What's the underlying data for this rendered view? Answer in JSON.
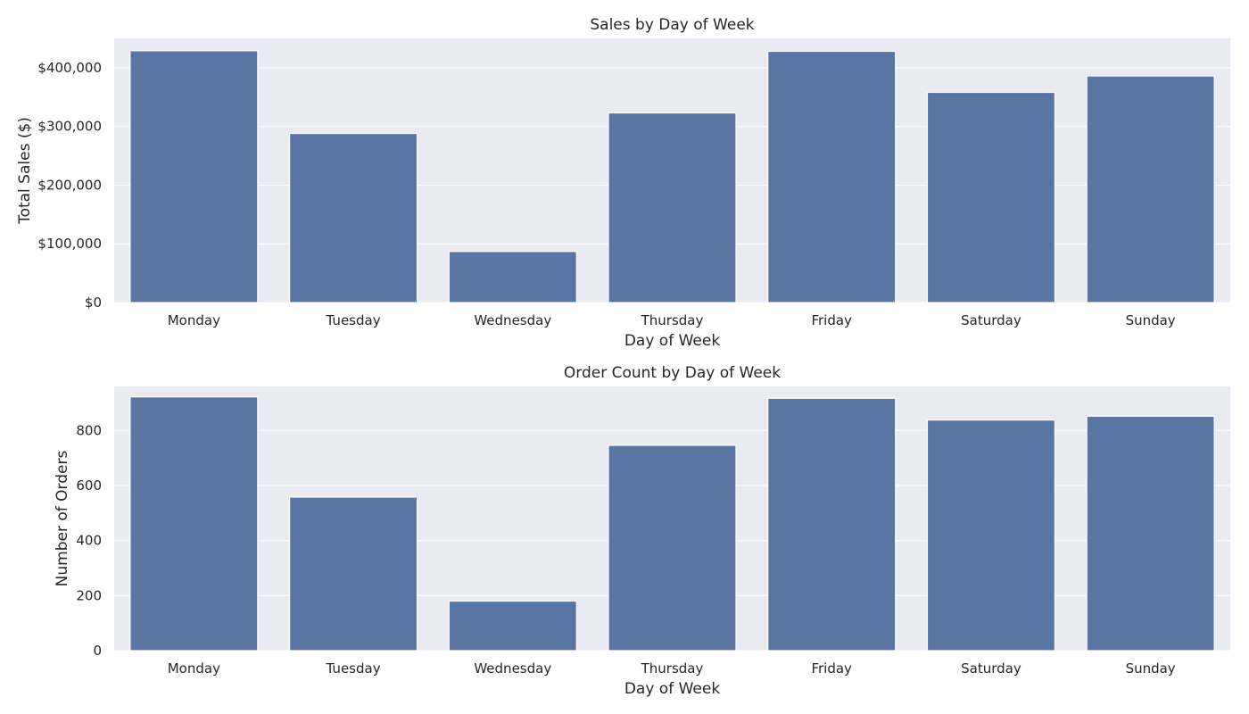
{
  "charts": [
    {
      "key": "sales",
      "title": "Sales by Day of Week",
      "xlabel": "Day of Week",
      "ylabel": "Total Sales ($)",
      "ylim": [
        0,
        450000
      ],
      "yticks": [
        0,
        100000,
        200000,
        300000,
        400000
      ],
      "ytick_labels": [
        "$0",
        "$100,000",
        "$200,000",
        "$300,000",
        "$400,000"
      ]
    },
    {
      "key": "orders",
      "title": "Order Count by Day of Week",
      "xlabel": "Day of Week",
      "ylabel": "Number of Orders",
      "ylim": [
        0,
        960
      ],
      "yticks": [
        0,
        200,
        400,
        600,
        800
      ],
      "ytick_labels": [
        "0",
        "200",
        "400",
        "600",
        "800"
      ]
    }
  ],
  "chart_data": [
    {
      "type": "bar",
      "title": "Sales by Day of Week",
      "xlabel": "Day of Week",
      "ylabel": "Total Sales ($)",
      "categories": [
        "Monday",
        "Tuesday",
        "Wednesday",
        "Thursday",
        "Friday",
        "Saturday",
        "Sunday"
      ],
      "values": [
        429000,
        288000,
        87000,
        323000,
        428000,
        358000,
        386000
      ],
      "ylim": [
        0,
        450000
      ],
      "grid": true,
      "bar_color": "#5975a4",
      "background": "#eaeaf2"
    },
    {
      "type": "bar",
      "title": "Order Count by Day of Week",
      "xlabel": "Day of Week",
      "ylabel": "Number of Orders",
      "categories": [
        "Monday",
        "Tuesday",
        "Wednesday",
        "Thursday",
        "Friday",
        "Saturday",
        "Sunday"
      ],
      "values": [
        922,
        558,
        180,
        746,
        917,
        838,
        852
      ],
      "ylim": [
        0,
        960
      ],
      "grid": true,
      "bar_color": "#5975a4",
      "background": "#eaeaf2"
    }
  ],
  "colors": {
    "bar": "#5975a4",
    "plot_background": "#eaeaf2",
    "grid": "#ffffff",
    "text": "#262626"
  }
}
